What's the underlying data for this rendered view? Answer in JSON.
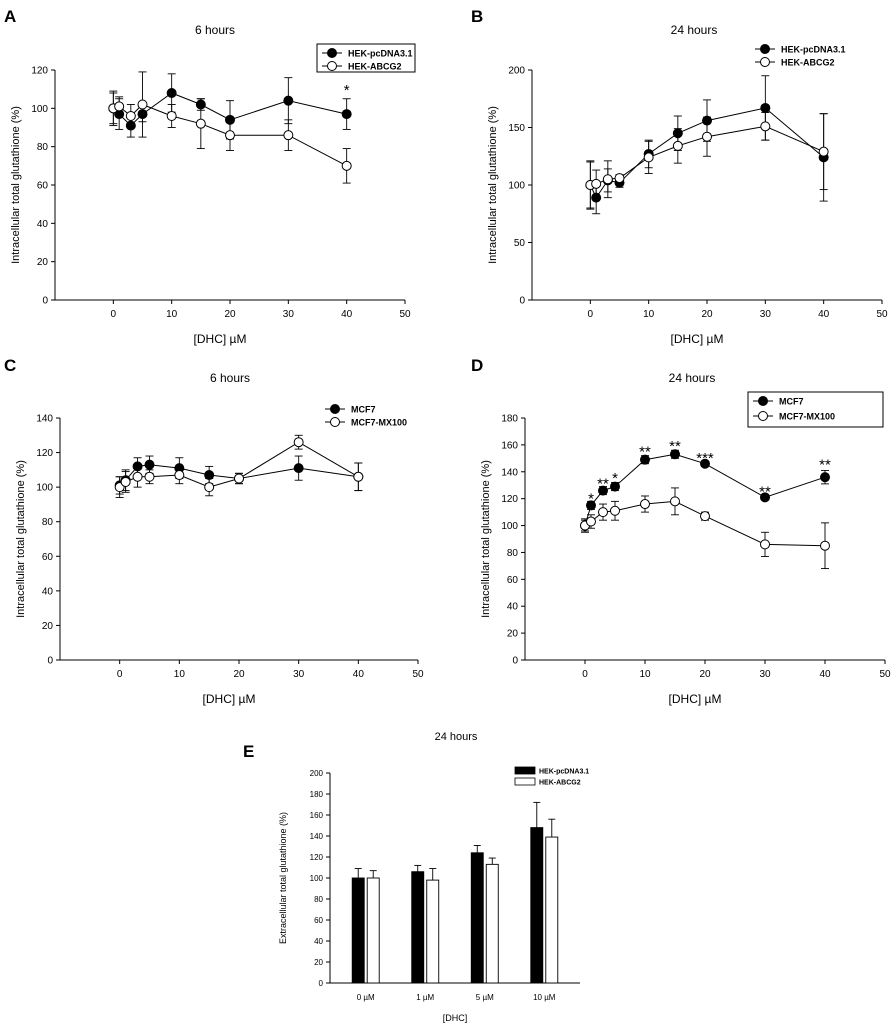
{
  "figure": {
    "panels": [
      {
        "letter": "A",
        "title": "6 hours"
      },
      {
        "letter": "B",
        "title": "24 hours"
      },
      {
        "letter": "C",
        "title": "6 hours"
      },
      {
        "letter": "D",
        "title": "24 hours"
      },
      {
        "letter": "E",
        "title": "24 hours"
      }
    ]
  },
  "chart_data": [
    {
      "id": "A",
      "type": "line",
      "title": "6 hours",
      "xlabel": "[DHC] µM",
      "ylabel": "Intracellular total glutathione (%)",
      "xlim": [
        -10,
        50
      ],
      "ylim": [
        0,
        120
      ],
      "xticks": [
        0,
        10,
        20,
        30,
        40,
        50
      ],
      "yticks": [
        0,
        20,
        40,
        60,
        80,
        100,
        120
      ],
      "legend_position": "top-right",
      "legend_boxed": true,
      "x": [
        0,
        1,
        3,
        5,
        10,
        15,
        20,
        30,
        40
      ],
      "series": [
        {
          "name": "HEK-pcDNA3.1",
          "marker": "filled",
          "values": [
            100,
            97,
            91,
            97,
            108,
            102,
            94,
            104,
            97
          ],
          "errors": [
            9,
            8,
            6,
            4,
            10,
            3,
            10,
            12,
            8
          ]
        },
        {
          "name": "HEK-ABCG2",
          "marker": "open",
          "values": [
            100,
            101,
            96,
            102,
            96,
            92,
            86,
            86,
            70
          ],
          "errors": [
            8,
            5,
            6,
            17,
            6,
            13,
            8,
            8,
            9
          ]
        }
      ],
      "annotations": [
        {
          "x": 40,
          "y": 110,
          "text": "*"
        }
      ]
    },
    {
      "id": "B",
      "type": "line",
      "title": "24 hours",
      "xlabel": "[DHC] µM",
      "ylabel": "Intracellular total glutathione (%)",
      "xlim": [
        -10,
        50
      ],
      "ylim": [
        0,
        200
      ],
      "xticks": [
        0,
        10,
        20,
        30,
        40,
        50
      ],
      "yticks": [
        0,
        50,
        100,
        150,
        200
      ],
      "legend_position": "top-right",
      "legend_boxed": false,
      "x": [
        0,
        1,
        3,
        5,
        10,
        15,
        20,
        30,
        40
      ],
      "series": [
        {
          "name": "HEK-pcDNA3.1",
          "marker": "filled",
          "values": [
            100,
            89,
            104,
            102,
            127,
            145,
            156,
            167,
            124
          ],
          "errors": [
            20,
            14,
            10,
            4,
            12,
            15,
            18,
            28,
            38
          ]
        },
        {
          "name": "HEK-ABCG2",
          "marker": "open",
          "values": [
            100,
            101,
            105,
            106,
            124,
            134,
            142,
            151,
            129
          ],
          "errors": [
            21,
            12,
            16,
            3,
            14,
            15,
            17,
            12,
            33
          ]
        }
      ],
      "annotations": []
    },
    {
      "id": "C",
      "type": "line",
      "title": "6 hours",
      "xlabel": "[DHC] µM",
      "ylabel": "Intracellular total glutathione (%)",
      "xlim": [
        -10,
        50
      ],
      "ylim": [
        0,
        140
      ],
      "xticks": [
        0,
        10,
        20,
        30,
        40,
        50
      ],
      "yticks": [
        0,
        20,
        40,
        60,
        80,
        100,
        120,
        140
      ],
      "legend_position": "top-right",
      "legend_boxed": false,
      "x": [
        0,
        1,
        3,
        5,
        10,
        15,
        20,
        30,
        40
      ],
      "series": [
        {
          "name": "MCF7",
          "marker": "filled",
          "values": [
            101,
            104,
            112,
            113,
            111,
            107,
            105,
            111,
            106
          ],
          "errors": [
            5,
            6,
            5,
            5,
            6,
            5,
            3,
            7,
            8
          ]
        },
        {
          "name": "MCF7-MX100",
          "marker": "open",
          "values": [
            100,
            103,
            106,
            106,
            107,
            100,
            105,
            126,
            106
          ],
          "errors": [
            6,
            6,
            6,
            4,
            5,
            5,
            3,
            4,
            8
          ]
        }
      ],
      "annotations": []
    },
    {
      "id": "D",
      "type": "line",
      "title": "24 hours",
      "xlabel": "[DHC] µM",
      "ylabel": "Intracellular total glutathione (%)",
      "xlim": [
        -10,
        50
      ],
      "ylim": [
        0,
        180
      ],
      "xticks": [
        0,
        10,
        20,
        30,
        40,
        50
      ],
      "yticks": [
        0,
        20,
        40,
        60,
        80,
        100,
        120,
        140,
        160,
        180
      ],
      "legend_position": "top-right",
      "legend_boxed": true,
      "x": [
        0,
        1,
        3,
        5,
        10,
        15,
        20,
        30,
        40
      ],
      "series": [
        {
          "name": "MCF7",
          "marker": "filled",
          "values": [
            100,
            115,
            126,
            129,
            149,
            153,
            146,
            121,
            136
          ],
          "errors": [
            4,
            3,
            3,
            3,
            3,
            3,
            2,
            2,
            5
          ]
        },
        {
          "name": "MCF7-MX100",
          "marker": "open",
          "values": [
            100,
            103,
            110,
            111,
            116,
            118,
            107,
            86,
            85
          ],
          "errors": [
            5,
            5,
            6,
            7,
            6,
            10,
            3,
            9,
            17
          ]
        }
      ],
      "annotations": [
        {
          "x": 1,
          "y": 121,
          "text": "*"
        },
        {
          "x": 3,
          "y": 132,
          "text": "**"
        },
        {
          "x": 5,
          "y": 136,
          "text": "*"
        },
        {
          "x": 10,
          "y": 156,
          "text": "**"
        },
        {
          "x": 15,
          "y": 160,
          "text": "**"
        },
        {
          "x": 20,
          "y": 151,
          "text": "***"
        },
        {
          "x": 30,
          "y": 126,
          "text": "**"
        },
        {
          "x": 40,
          "y": 146,
          "text": "**"
        }
      ]
    },
    {
      "id": "E",
      "type": "bar",
      "title": "24 hours",
      "xlabel": "[DHC]",
      "ylabel": "Extracellular total glutathione (%)",
      "ylim": [
        0,
        200
      ],
      "yticks": [
        0,
        20,
        40,
        60,
        80,
        100,
        120,
        140,
        160,
        180,
        200
      ],
      "categories": [
        "0 µM",
        "1 µM",
        "5 µM",
        "10 µM"
      ],
      "legend_position": "top-right",
      "legend_boxed": false,
      "series": [
        {
          "name": "HEK-pcDNA3.1",
          "fill": "#000000",
          "values": [
            100,
            106,
            124,
            148
          ],
          "errors": [
            9,
            6,
            7,
            24
          ]
        },
        {
          "name": "HEK-ABCG2",
          "fill": "#ffffff",
          "values": [
            100,
            98,
            113,
            139
          ],
          "errors": [
            7,
            11,
            6,
            17
          ]
        }
      ]
    }
  ]
}
